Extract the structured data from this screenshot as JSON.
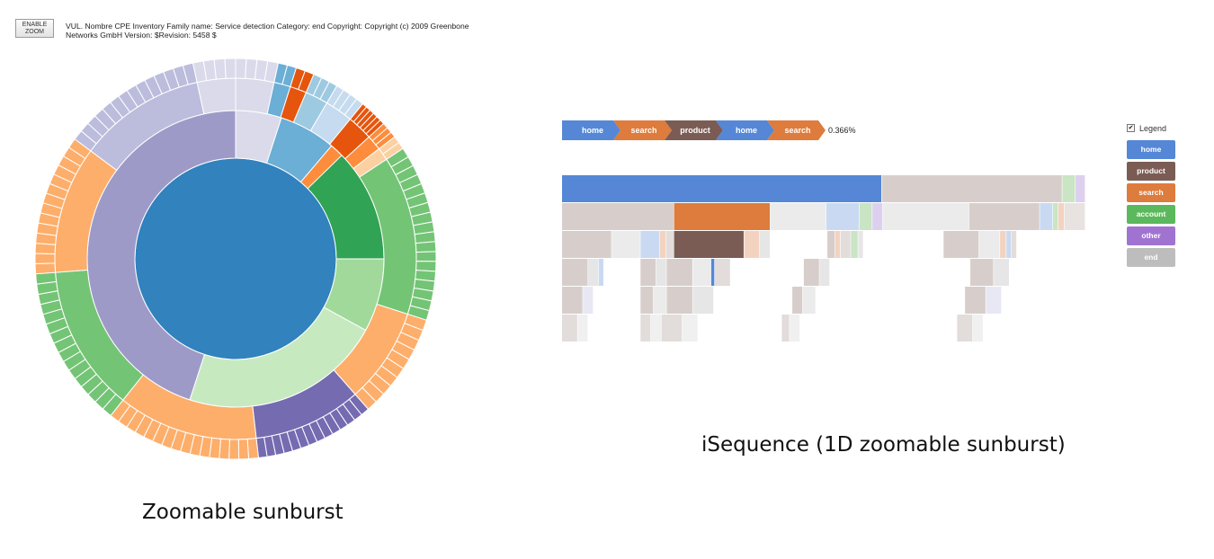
{
  "left_panel": {
    "zoom_button": {
      "line1": "ENABLE",
      "line2": "ZOOM"
    },
    "description_line1": "VUL. Nombre CPE Inventory Family name: Service detection Category: end Copyright: Copyright (c) 2009 Greenbone",
    "description_line2": "Networks GmbH Version: $Revision: 5458 $",
    "caption": "Zoomable sunburst",
    "sunburst": {
      "center_color": "#3182bd",
      "ring1": [
        {
          "value": 0.05,
          "color": "#dadaeb"
        },
        {
          "value": 0.062,
          "color": "#6baed6"
        },
        {
          "value": 0.015,
          "color": "#fd8d3c"
        },
        {
          "value": 0.123,
          "color": "#31a354"
        },
        {
          "value": 0.08,
          "color": "#a1d99b"
        },
        {
          "value": 0.22,
          "color": "#c7e9c0"
        },
        {
          "value": 0.45,
          "color": "#9e9ac8"
        }
      ],
      "ring2": [
        {
          "value": 0.03,
          "color": "#dadaeb"
        },
        {
          "value": 0.013,
          "color": "#6baed6"
        },
        {
          "value": 0.013,
          "color": "#e6550d"
        },
        {
          "value": 0.018,
          "color": "#9ecae1"
        },
        {
          "value": 0.022,
          "color": "#c6dbef"
        },
        {
          "value": 0.02,
          "color": "#e6550d"
        },
        {
          "value": 0.012,
          "color": "#fd8d3c"
        },
        {
          "value": 0.01,
          "color": "#fdd0a2"
        },
        {
          "value": 0.125,
          "color": "#74c476"
        },
        {
          "value": 0.075,
          "color": "#fdae6b"
        },
        {
          "value": 0.085,
          "color": "#756bb1"
        },
        {
          "value": 0.11,
          "color": "#fdae6b"
        },
        {
          "value": 0.115,
          "color": "#74c476"
        },
        {
          "value": 0.1,
          "color": "#fdae6b"
        },
        {
          "value": 0.1,
          "color": "#bcbddc"
        },
        {
          "value": 0.03,
          "color": "#dadaeb"
        }
      ],
      "ring3_subdivisions": [
        4,
        2,
        2,
        3,
        4,
        6,
        3,
        2,
        18,
        10,
        14,
        16,
        16,
        14,
        14,
        4
      ]
    }
  },
  "right_panel": {
    "breadcrumb": [
      {
        "label": "home",
        "color": "#5587d6"
      },
      {
        "label": "search",
        "color": "#dd7c3c"
      },
      {
        "label": "product",
        "color": "#7b5c55"
      },
      {
        "label": "home",
        "color": "#5587d6"
      },
      {
        "label": "search",
        "color": "#dd7c3c"
      }
    ],
    "percentage": "0.366%",
    "caption": "iSequence (1D zoomable sunburst)",
    "legend": {
      "checkbox_label": "Legend",
      "checked": true,
      "items": [
        {
          "label": "home",
          "color": "#5587d6"
        },
        {
          "label": "product",
          "color": "#7b5c55"
        },
        {
          "label": "search",
          "color": "#dd7c3c"
        },
        {
          "label": "account",
          "color": "#5cb85c"
        },
        {
          "label": "other",
          "color": "#a173d1"
        },
        {
          "label": "end",
          "color": "#bdbdbd"
        }
      ]
    },
    "icicle_rows": [
      [
        {
          "w": 0.611,
          "c": "#5587d6"
        },
        {
          "w": 0.345,
          "c": "#d7cecb"
        },
        {
          "w": 0.025,
          "c": "#c9e5c4"
        },
        {
          "w": 0.019,
          "c": "#ddd0ee"
        }
      ],
      [
        {
          "w": 0.214,
          "c": "#d7cecb"
        },
        {
          "w": 0.184,
          "c": "#dd7c3c"
        },
        {
          "w": 0.107,
          "c": "#ebebeb"
        },
        {
          "w": 0.063,
          "c": "#c9d9f2"
        },
        {
          "w": 0.025,
          "c": "#c9e5c4"
        },
        {
          "w": 0.02,
          "c": "#ddd0ee"
        },
        {
          "w": 0.165,
          "c": "#ebebeb"
        },
        {
          "w": 0.135,
          "c": "#d7cecb"
        },
        {
          "w": 0.025,
          "c": "#c9d9f2"
        },
        {
          "w": 0.01,
          "c": "#c9e5c4"
        },
        {
          "w": 0.012,
          "c": "#f3d3bf"
        },
        {
          "w": 0.04,
          "c": "#e8e2e0"
        }
      ],
      [
        {
          "w": 0.095,
          "c": "#d7cecb"
        },
        {
          "w": 0.055,
          "c": "#ebebeb"
        },
        {
          "w": 0.037,
          "c": "#c9d9f2"
        },
        {
          "w": 0.012,
          "c": "#f3d3bf"
        },
        {
          "w": 0.015,
          "c": "#e2dcda"
        },
        {
          "w": 0.134,
          "c": "#7b5c55"
        },
        {
          "w": 0.03,
          "c": "#f3d3bf"
        },
        {
          "w": 0.02,
          "c": "#e6e6e6"
        },
        {
          "w": 0.109,
          "c": "#ffffff"
        },
        {
          "w": 0.015,
          "c": "#d7cecb"
        },
        {
          "w": 0.01,
          "c": "#f3d3bf"
        },
        {
          "w": 0.02,
          "c": "#e2dcda"
        },
        {
          "w": 0.014,
          "c": "#c9e5c4"
        },
        {
          "w": 0.01,
          "c": "#e6e6e6"
        },
        {
          "w": 0.153,
          "c": "#ffffff"
        },
        {
          "w": 0.068,
          "c": "#d7cecb"
        },
        {
          "w": 0.04,
          "c": "#ebebeb"
        },
        {
          "w": 0.012,
          "c": "#f3d3bf"
        },
        {
          "w": 0.01,
          "c": "#c9d9f2"
        },
        {
          "w": 0.01,
          "c": "#e2dcda"
        },
        {
          "w": 0.131,
          "c": "#ffffff"
        }
      ],
      [
        {
          "w": 0.05,
          "c": "#d7cecb"
        },
        {
          "w": 0.02,
          "c": "#e6e6e6"
        },
        {
          "w": 0.01,
          "c": "#c9d9f2"
        },
        {
          "w": 0.07,
          "c": "#ffffff"
        },
        {
          "w": 0.03,
          "c": "#d7cecb"
        },
        {
          "w": 0.02,
          "c": "#e6e6e6"
        },
        {
          "w": 0.05,
          "c": "#d7cecb"
        },
        {
          "w": 0.035,
          "c": "#ebebeb"
        },
        {
          "w": 0.007,
          "c": "#5587d6"
        },
        {
          "w": 0.03,
          "c": "#e2dcda"
        },
        {
          "w": 0.14,
          "c": "#ffffff"
        },
        {
          "w": 0.03,
          "c": "#d7cecb"
        },
        {
          "w": 0.02,
          "c": "#e6e6e6"
        },
        {
          "w": 0.268,
          "c": "#ffffff"
        },
        {
          "w": 0.045,
          "c": "#d7cecb"
        },
        {
          "w": 0.03,
          "c": "#e6e6e6"
        },
        {
          "w": 0.145,
          "c": "#ffffff"
        }
      ],
      [
        {
          "w": 0.04,
          "c": "#d7cecb"
        },
        {
          "w": 0.02,
          "c": "#e8e8f4"
        },
        {
          "w": 0.09,
          "c": "#ffffff"
        },
        {
          "w": 0.025,
          "c": "#d7cecb"
        },
        {
          "w": 0.025,
          "c": "#ebebeb"
        },
        {
          "w": 0.05,
          "c": "#d7cecb"
        },
        {
          "w": 0.04,
          "c": "#e6e6e6"
        },
        {
          "w": 0.15,
          "c": "#ffffff"
        },
        {
          "w": 0.02,
          "c": "#d7cecb"
        },
        {
          "w": 0.025,
          "c": "#ebebeb"
        },
        {
          "w": 0.285,
          "c": "#ffffff"
        },
        {
          "w": 0.04,
          "c": "#d7cecb"
        },
        {
          "w": 0.03,
          "c": "#e8e8f4"
        },
        {
          "w": 0.15,
          "c": "#ffffff"
        }
      ],
      [
        {
          "w": 0.03,
          "c": "#e2dcda"
        },
        {
          "w": 0.02,
          "c": "#f0f0f0"
        },
        {
          "w": 0.1,
          "c": "#ffffff"
        },
        {
          "w": 0.02,
          "c": "#e2dcda"
        },
        {
          "w": 0.02,
          "c": "#f0f0f0"
        },
        {
          "w": 0.04,
          "c": "#e2dcda"
        },
        {
          "w": 0.03,
          "c": "#f0f0f0"
        },
        {
          "w": 0.16,
          "c": "#ffffff"
        },
        {
          "w": 0.015,
          "c": "#e2dcda"
        },
        {
          "w": 0.02,
          "c": "#f0f0f0"
        },
        {
          "w": 0.3,
          "c": "#ffffff"
        },
        {
          "w": 0.03,
          "c": "#e2dcda"
        },
        {
          "w": 0.02,
          "c": "#f0f0f0"
        },
        {
          "w": 0.195,
          "c": "#ffffff"
        }
      ]
    ]
  }
}
